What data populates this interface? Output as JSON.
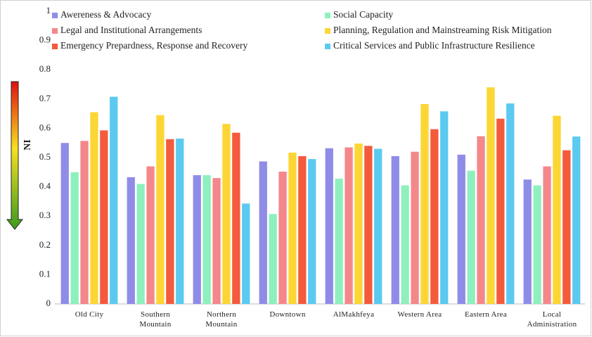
{
  "chart_data": {
    "type": "bar",
    "ylabel": "NI",
    "categories": [
      "Old City",
      "Southern Mountain",
      "Northern Mountain",
      "Downtown",
      "AlMakhfeya",
      "Western Area",
      "Eastern Area",
      "Local Administration"
    ],
    "series": [
      {
        "name": "Awereness & Advocacy",
        "color": "#8f8ce8",
        "values": [
          0.55,
          0.433,
          0.44,
          0.487,
          0.532,
          0.505,
          0.51,
          0.425
        ]
      },
      {
        "name": "Social Capacity",
        "color": "#8ef0bd",
        "values": [
          0.45,
          0.41,
          0.44,
          0.307,
          0.428,
          0.405,
          0.455,
          0.405
        ]
      },
      {
        "name": "Legal and Institutional Arrangements",
        "color": "#f4878a",
        "values": [
          0.557,
          0.47,
          0.43,
          0.452,
          0.535,
          0.52,
          0.573,
          0.47
        ]
      },
      {
        "name": "Planning, Regulation and Mainstreaming Risk Mitigation",
        "color": "#fcd634",
        "values": [
          0.655,
          0.645,
          0.615,
          0.517,
          0.548,
          0.683,
          0.74,
          0.643
        ]
      },
      {
        "name": "Emergency Prepardness, Response and Recovery",
        "color": "#f45a3c",
        "values": [
          0.593,
          0.563,
          0.585,
          0.505,
          0.54,
          0.597,
          0.633,
          0.525
        ]
      },
      {
        "name": "Critical Services and Public Infrastructure Resilience",
        "color": "#5ccaf0",
        "values": [
          0.708,
          0.565,
          0.343,
          0.495,
          0.53,
          0.658,
          0.685,
          0.572
        ]
      }
    ],
    "ylim": [
      0,
      1
    ],
    "yticks": [
      0,
      0.1,
      0.2,
      0.3,
      0.4,
      0.5,
      0.6,
      0.7,
      0.8,
      0.9,
      1
    ],
    "grid": false
  }
}
